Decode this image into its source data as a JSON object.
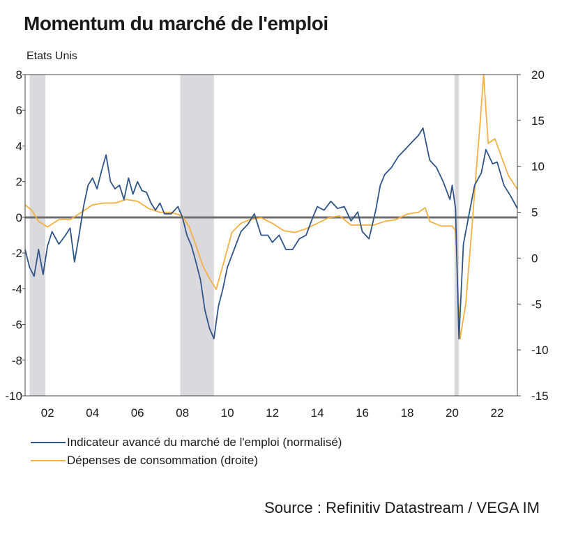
{
  "colors": {
    "employment": "#2f5487",
    "consumption": "#f5b041",
    "recession": "#d9d9de",
    "zero_line": "#6e6e6e"
  },
  "chart_data": {
    "type": "line",
    "title": "Momentum du marché de l'emploi",
    "subtitle": "Etats Unis",
    "source": "Source : Refinitiv Datastream / VEGA IM",
    "x_range": [
      2001.0,
      2022.9
    ],
    "x_ticks": [
      {
        "x": 2002,
        "label": "02"
      },
      {
        "x": 2004,
        "label": "04"
      },
      {
        "x": 2006,
        "label": "06"
      },
      {
        "x": 2008,
        "label": "08"
      },
      {
        "x": 2010,
        "label": "10"
      },
      {
        "x": 2012,
        "label": "12"
      },
      {
        "x": 2014,
        "label": "14"
      },
      {
        "x": 2016,
        "label": "16"
      },
      {
        "x": 2018,
        "label": "18"
      },
      {
        "x": 2020,
        "label": "20"
      },
      {
        "x": 2022,
        "label": "22"
      }
    ],
    "y_left": {
      "range": [
        -10,
        8
      ],
      "ticks": [
        8,
        6,
        4,
        2,
        0,
        -2,
        -4,
        -6,
        -8,
        -10
      ]
    },
    "y_right": {
      "range": [
        -15,
        20
      ],
      "ticks": [
        20,
        15,
        10,
        5,
        0,
        -5,
        -10,
        -15
      ]
    },
    "recessions": [
      [
        2001.2,
        2001.9
      ],
      [
        2007.9,
        2009.4
      ],
      [
        2020.1,
        2020.3
      ]
    ],
    "series": [
      {
        "name": "Indicateur avancé du marché de l'emploi (normalisé)",
        "axis": "left",
        "x": [
          2001.0,
          2001.2,
          2001.4,
          2001.6,
          2001.8,
          2002.0,
          2002.2,
          2002.5,
          2002.8,
          2003.0,
          2003.2,
          2003.4,
          2003.6,
          2003.8,
          2004.0,
          2004.2,
          2004.4,
          2004.6,
          2004.8,
          2005.0,
          2005.2,
          2005.4,
          2005.6,
          2005.8,
          2006.0,
          2006.2,
          2006.4,
          2006.6,
          2006.8,
          2007.0,
          2007.2,
          2007.5,
          2007.8,
          2008.0,
          2008.2,
          2008.4,
          2008.6,
          2008.8,
          2009.0,
          2009.2,
          2009.4,
          2009.6,
          2009.8,
          2010.0,
          2010.3,
          2010.6,
          2010.9,
          2011.2,
          2011.5,
          2011.8,
          2012.0,
          2012.3,
          2012.6,
          2012.9,
          2013.2,
          2013.5,
          2013.8,
          2014.0,
          2014.3,
          2014.6,
          2014.9,
          2015.2,
          2015.5,
          2015.8,
          2016.0,
          2016.3,
          2016.6,
          2016.8,
          2017.0,
          2017.3,
          2017.6,
          2017.9,
          2018.2,
          2018.5,
          2018.7,
          2019.0,
          2019.3,
          2019.6,
          2019.9,
          2020.0,
          2020.15,
          2020.3,
          2020.5,
          2020.8,
          2021.0,
          2021.3,
          2021.5,
          2021.8,
          2022.0,
          2022.3,
          2022.6,
          2022.9
        ],
        "values": [
          -1.8,
          -2.8,
          -3.3,
          -1.8,
          -3.2,
          -1.6,
          -0.8,
          -1.5,
          -1.0,
          -0.6,
          -2.5,
          -1.0,
          0.6,
          1.8,
          2.2,
          1.6,
          2.6,
          3.5,
          2.0,
          1.6,
          1.8,
          1.0,
          2.2,
          1.3,
          2.0,
          1.5,
          1.4,
          0.8,
          0.4,
          0.8,
          0.2,
          0.2,
          0.6,
          0.0,
          -1.0,
          -1.6,
          -2.5,
          -3.5,
          -5.2,
          -6.2,
          -6.8,
          -5.0,
          -4.0,
          -2.8,
          -1.8,
          -0.8,
          -0.4,
          0.2,
          -1.0,
          -1.0,
          -1.4,
          -1.0,
          -1.8,
          -1.8,
          -1.2,
          -1.0,
          0.0,
          0.6,
          0.4,
          0.9,
          0.5,
          0.6,
          -0.2,
          0.3,
          -0.8,
          -1.2,
          0.4,
          1.8,
          2.4,
          2.8,
          3.4,
          3.8,
          4.2,
          4.6,
          5.0,
          3.2,
          2.8,
          2.0,
          1.0,
          1.8,
          0.5,
          -6.8,
          -1.5,
          0.5,
          1.8,
          2.5,
          3.8,
          3.0,
          3.1,
          1.8,
          1.2,
          0.5
        ]
      },
      {
        "name": "Dépenses de consommation (droite)",
        "axis": "right",
        "x": [
          2001.0,
          2001.3,
          2001.6,
          2002.0,
          2002.5,
          2003.0,
          2003.5,
          2004.0,
          2004.5,
          2005.0,
          2005.5,
          2006.0,
          2006.5,
          2007.0,
          2007.5,
          2008.0,
          2008.3,
          2008.6,
          2008.9,
          2009.2,
          2009.5,
          2009.8,
          2010.2,
          2010.6,
          2011.0,
          2011.5,
          2012.0,
          2012.5,
          2013.0,
          2013.5,
          2014.0,
          2014.5,
          2015.0,
          2015.5,
          2016.0,
          2016.5,
          2017.0,
          2017.5,
          2018.0,
          2018.5,
          2018.8,
          2019.0,
          2019.5,
          2020.0,
          2020.15,
          2020.35,
          2020.6,
          2020.9,
          2021.1,
          2021.25,
          2021.4,
          2021.6,
          2021.9,
          2022.2,
          2022.5,
          2022.9
        ],
        "values": [
          5.8,
          5.2,
          4.0,
          3.4,
          4.2,
          4.2,
          5.0,
          5.8,
          6.0,
          6.0,
          6.4,
          6.2,
          5.4,
          5.0,
          5.0,
          4.6,
          3.4,
          1.4,
          -0.8,
          -2.2,
          -3.4,
          -0.8,
          2.8,
          3.8,
          4.2,
          4.4,
          3.8,
          3.0,
          2.8,
          3.2,
          3.8,
          4.4,
          4.6,
          3.6,
          3.6,
          3.6,
          4.0,
          4.2,
          4.8,
          5.0,
          5.5,
          4.0,
          3.5,
          3.5,
          3.0,
          -8.8,
          -5.0,
          4.0,
          10.5,
          15.0,
          20.0,
          12.5,
          13.0,
          11.0,
          9.0,
          7.5
        ]
      }
    ]
  }
}
